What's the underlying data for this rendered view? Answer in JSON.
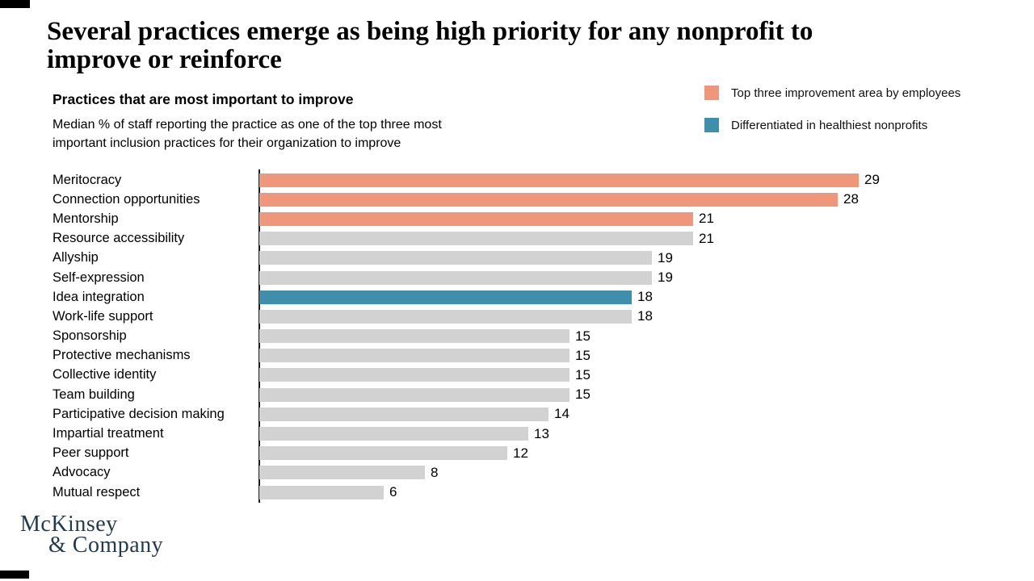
{
  "slide": {
    "title_lines": [
      "Several practices emerge as being high priority for any nonprofit to",
      "improve or reinforce"
    ],
    "chart_header": "Practices that are most important to improve",
    "chart_subtitle_lines": [
      "Median % of staff reporting the practice as one of the top three most",
      "important inclusion practices for their organization to improve"
    ],
    "logo_lines": [
      "McKinsey",
      "& Company"
    ]
  },
  "legend": {
    "items": [
      {
        "label": "Top three improvement area by employees",
        "color": "#F0977B"
      },
      {
        "label": "Differentiated in healthiest nonprofits",
        "color": "#3E8EAC"
      }
    ]
  },
  "colors": {
    "bar_orange": "#F0977B",
    "bar_teal": "#3E8EAC",
    "bar_gray": "#D2D2D2",
    "logo_navy": "#1F3B4D",
    "axis": "#1a1a1a"
  },
  "chart_data": {
    "type": "bar",
    "orientation": "horizontal",
    "title": "Practices that are most important to improve",
    "xlabel": "Median % of staff",
    "xlim": [
      0,
      29
    ],
    "grid": false,
    "value_labels": true,
    "categories": [
      "Meritocracy",
      "Connection opportunities",
      "Mentorship",
      "Resource accessibility",
      "Allyship",
      "Self-expression",
      "Idea integration",
      "Work-life support",
      "Sponsorship",
      "Protective mechanisms",
      "Collective identity",
      "Team building",
      "Participative decision making",
      "Impartial treatment",
      "Peer support",
      "Advocacy",
      "Mutual respect"
    ],
    "values": [
      29,
      28,
      21,
      21,
      19,
      19,
      18,
      18,
      15,
      15,
      15,
      15,
      14,
      13,
      12,
      8,
      6
    ],
    "bar_colors": [
      "orange",
      "orange",
      "orange",
      "gray",
      "gray",
      "gray",
      "teal",
      "gray",
      "gray",
      "gray",
      "gray",
      "gray",
      "gray",
      "gray",
      "gray",
      "gray",
      "gray"
    ],
    "palette": {
      "orange": "#F0977B",
      "teal": "#3E8EAC",
      "gray": "#D2D2D2"
    }
  }
}
